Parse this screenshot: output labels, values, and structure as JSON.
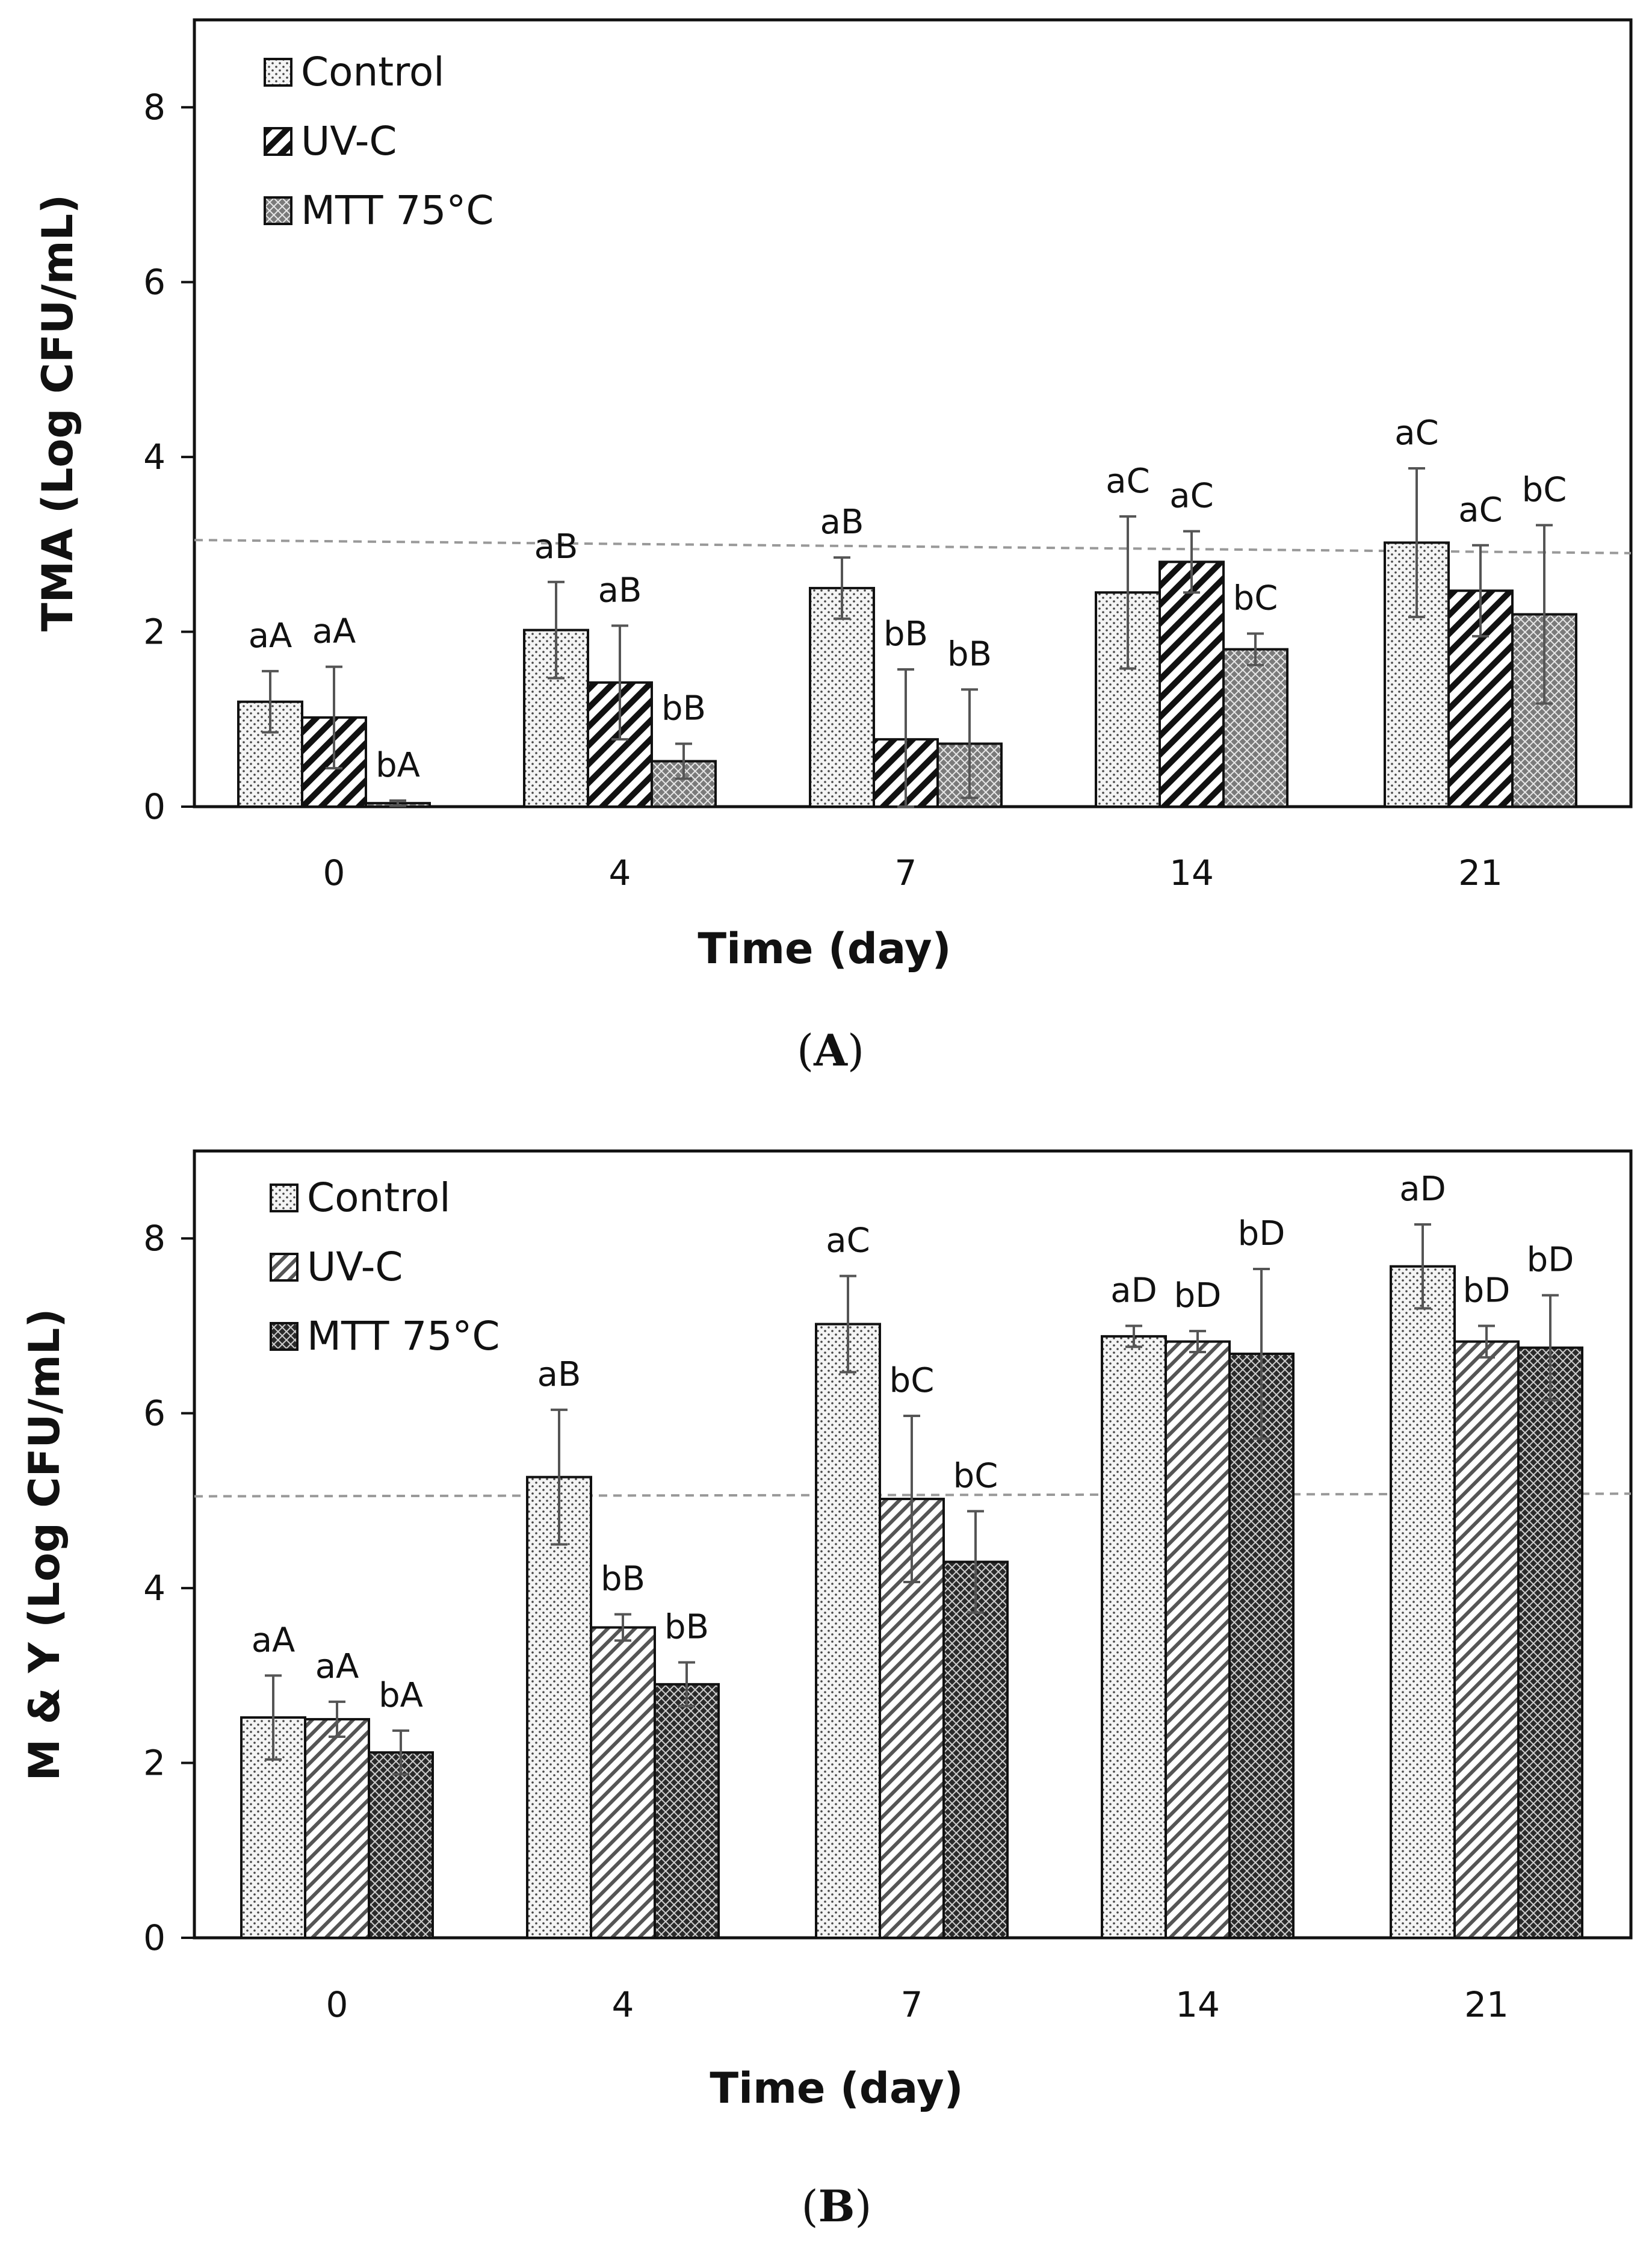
{
  "colors": {
    "control_bg": "#f0f0f0",
    "uvc_bg": "#ffffff",
    "mtt_bg": "#8c8c8c",
    "bar_stroke": "#111111",
    "error_bar": "#555555",
    "threshold": "#999999"
  },
  "chart_data": [
    {
      "type": "bar",
      "panel_label": "A",
      "xlabel": "Time (day)",
      "ylabel": "TMA (Log  CFU/mL)",
      "ylim": [
        0,
        9
      ],
      "yticks": [
        "0",
        "2",
        "4",
        "6",
        "8"
      ],
      "categories": [
        "0",
        "4",
        "7",
        "14",
        "21"
      ],
      "threshold": [
        3.05,
        2.9
      ],
      "legend_position": "top-left",
      "series": [
        {
          "name": "Control",
          "pattern": "dots-light",
          "values": [
            1.2,
            2.02,
            2.5,
            2.45,
            3.02
          ],
          "errors": [
            0.35,
            0.55,
            0.35,
            0.87,
            0.85
          ],
          "labels": [
            "aA",
            "aB",
            "aB",
            "aC",
            "aC"
          ]
        },
        {
          "name": "UV-C",
          "pattern": "hatch-thick",
          "values": [
            1.02,
            1.42,
            0.77,
            2.8,
            2.47
          ],
          "errors": [
            0.58,
            0.65,
            0.8,
            0.35,
            0.52
          ],
          "labels": [
            "aA",
            "aB",
            "bB",
            "aC",
            "aC"
          ]
        },
        {
          "name": "MTT 75°C",
          "pattern": "crosshatch-gray",
          "values": [
            0.04,
            0.52,
            0.72,
            1.8,
            2.2
          ],
          "errors": [
            0.03,
            0.2,
            0.62,
            0.18,
            1.02
          ],
          "labels": [
            "bA",
            "bB",
            "bB",
            "bC",
            "bC"
          ]
        }
      ]
    },
    {
      "type": "bar",
      "panel_label": "B",
      "xlabel": "Time (day)",
      "ylabel": "M & Y (Log  CFU/mL)",
      "ylim": [
        0,
        9
      ],
      "yticks": [
        "0",
        "2",
        "4",
        "6",
        "8"
      ],
      "categories": [
        "0",
        "4",
        "7",
        "14",
        "21"
      ],
      "threshold": [
        5.05,
        5.08
      ],
      "legend_position": "top-left",
      "series": [
        {
          "name": "Control",
          "pattern": "dots-light",
          "values": [
            2.52,
            5.27,
            7.02,
            6.88,
            7.68
          ],
          "errors": [
            0.48,
            0.77,
            0.55,
            0.12,
            0.48
          ],
          "labels": [
            "aA",
            "aB",
            "aC",
            "aD",
            "aD"
          ]
        },
        {
          "name": "UV-C",
          "pattern": "hatch-thin",
          "values": [
            2.5,
            3.55,
            5.02,
            6.82,
            6.82
          ],
          "errors": [
            0.2,
            0.15,
            0.95,
            0.12,
            0.18
          ],
          "labels": [
            "aA",
            "bB",
            "bC",
            "bD",
            "bD"
          ]
        },
        {
          "name": "MTT 75°C",
          "pattern": "crosshatch-dark",
          "values": [
            2.12,
            2.9,
            4.3,
            6.68,
            6.75
          ],
          "errors": [
            0.25,
            0.25,
            0.58,
            0.97,
            0.6
          ],
          "labels": [
            "bA",
            "bB",
            "bC",
            "bD",
            "bD"
          ]
        }
      ]
    }
  ]
}
